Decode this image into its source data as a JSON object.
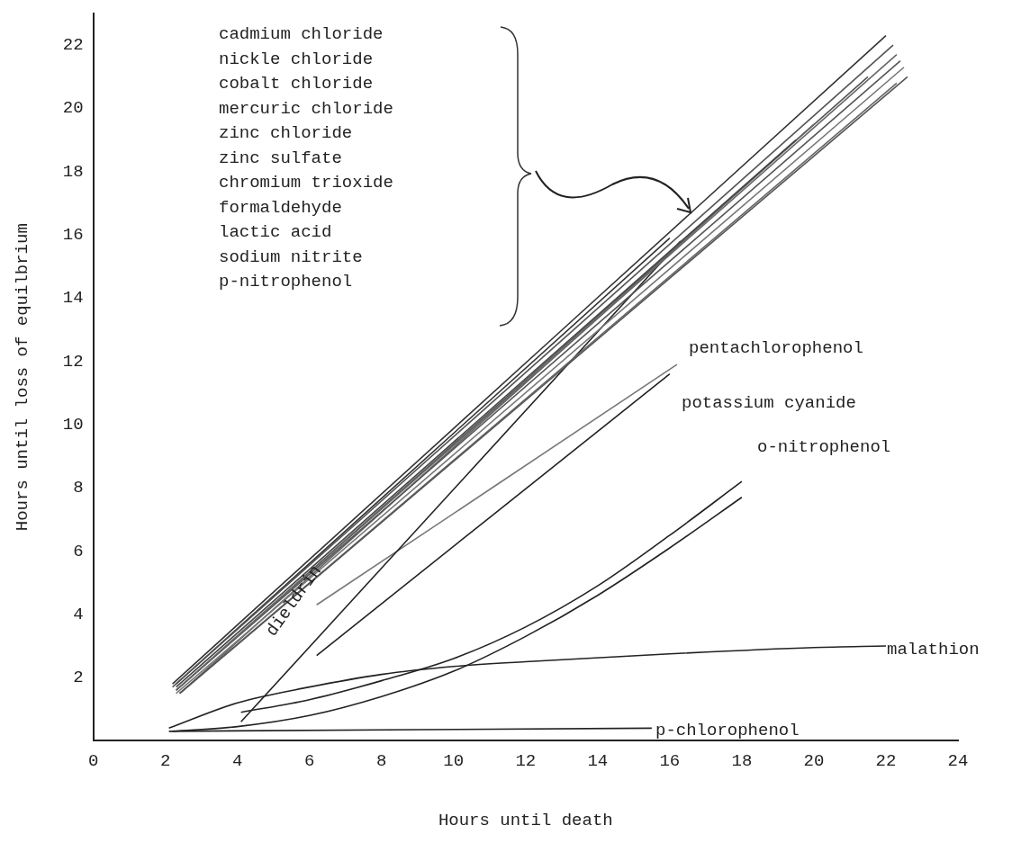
{
  "chart_data": {
    "type": "line",
    "xlabel": "Hours until death",
    "ylabel": "Hours until loss of equilbrium",
    "xlim": [
      0,
      24
    ],
    "xticks": [
      0,
      2,
      4,
      6,
      8,
      10,
      12,
      14,
      16,
      18,
      20,
      22,
      24
    ],
    "ylim": [
      0,
      23
    ],
    "yticks": [
      2,
      4,
      6,
      8,
      10,
      12,
      14,
      16,
      18,
      20,
      22
    ],
    "grid": false,
    "legend": false,
    "marker": "none",
    "line_style": "solid",
    "series": [
      {
        "color": "#333333",
        "x": [
          2.2,
          22.0
        ],
        "values": [
          1.8,
          22.3
        ]
      },
      {
        "color": "#555555",
        "x": [
          2.2,
          22.2
        ],
        "values": [
          1.7,
          22.0
        ]
      },
      {
        "color": "#666666",
        "x": [
          2.3,
          22.3
        ],
        "values": [
          1.6,
          21.7
        ]
      },
      {
        "color": "#555555",
        "x": [
          2.3,
          22.4
        ],
        "values": [
          1.6,
          21.5
        ]
      },
      {
        "color": "#777777",
        "x": [
          2.3,
          22.5
        ],
        "values": [
          1.5,
          21.3
        ]
      },
      {
        "color": "#555555",
        "x": [
          2.4,
          22.6
        ],
        "values": [
          1.5,
          21.0
        ]
      },
      {
        "color": "#666666",
        "x": [
          2.4,
          22.3
        ],
        "values": [
          1.5,
          20.8
        ]
      },
      {
        "color": "#444444",
        "x": [
          2.3,
          19.5
        ],
        "values": [
          1.7,
          19.0
        ]
      },
      {
        "color": "#333333",
        "x": [
          2.3,
          16.0
        ],
        "values": [
          1.8,
          15.9
        ]
      },
      {
        "color": "#666666",
        "x": [
          2.4,
          20.0
        ],
        "values": [
          1.5,
          19.5
        ]
      },
      {
        "color": "#555555",
        "x": [
          2.3,
          21.5
        ],
        "values": [
          1.6,
          21.0
        ]
      },
      {
        "color": "#222222",
        "x": [
          4.1,
          16.3
        ],
        "values": [
          0.6,
          15.8
        ]
      },
      {
        "color": "#777777",
        "x": [
          6.2,
          16.2
        ],
        "values": [
          4.3,
          11.9
        ]
      },
      {
        "color": "#222222",
        "x": [
          6.2,
          16.0
        ],
        "values": [
          2.7,
          11.6
        ]
      },
      {
        "color": "#222222",
        "x": [
          4.1,
          6,
          8,
          10,
          12,
          14,
          16,
          18
        ],
        "values": [
          0.9,
          1.3,
          1.9,
          2.6,
          3.6,
          4.9,
          6.5,
          8.2
        ]
      },
      {
        "color": "#222222",
        "x": [
          2.2,
          4,
          6,
          8,
          10,
          12,
          14,
          16,
          18
        ],
        "values": [
          0.3,
          0.45,
          0.8,
          1.4,
          2.2,
          3.3,
          4.6,
          6.1,
          7.7
        ]
      },
      {
        "color": "#222222",
        "x": [
          2.1,
          4,
          6,
          8,
          10,
          12,
          16,
          20,
          22
        ],
        "values": [
          0.4,
          1.2,
          1.7,
          2.1,
          2.35,
          2.5,
          2.75,
          2.95,
          3.0
        ]
      },
      {
        "color": "#222222",
        "x": [
          2.1,
          15.5
        ],
        "values": [
          0.3,
          0.4
        ]
      }
    ],
    "annotations": [
      "cadmium chloride",
      "nickle chloride",
      "cobalt chloride",
      "mercuric chloride",
      "zinc chloride",
      "zinc sulfate",
      "chromium trioxide",
      "formaldehyde",
      "lactic acid",
      "sodium nitrite",
      "p-nitrophenol",
      "pentachlorophenol",
      "potassium cyanide",
      "o-nitrophenol",
      "dieldrin",
      "malathion",
      "p-chlorophenol"
    ]
  }
}
